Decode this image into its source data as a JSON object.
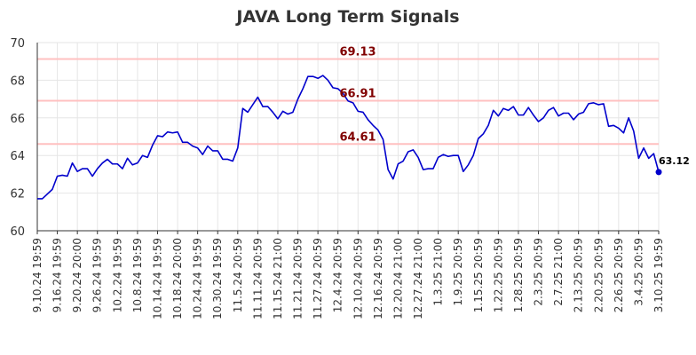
{
  "chart_data": {
    "type": "line",
    "title": "JAVA Long Term Signals",
    "xlabel": "",
    "ylabel": "",
    "ylim": [
      60,
      70
    ],
    "yticks": [
      60,
      62,
      64,
      66,
      68,
      70
    ],
    "grid": true,
    "line_color": "#0000cc",
    "ref_line_color": "#ffc0c0",
    "ref_label_color": "#800000",
    "ref_lines": [
      {
        "value": 69.13,
        "label": "69.13"
      },
      {
        "value": 66.91,
        "label": "66.91"
      },
      {
        "value": 64.61,
        "label": "64.61"
      }
    ],
    "last_value_label": "63.12",
    "x_tick_labels": [
      "9.10.24 19:59",
      "9.16.24 19:59",
      "9.20.24 20:00",
      "9.26.24 19:59",
      "10.2.24 19:59",
      "10.8.24 19:59",
      "10.14.24 19:59",
      "10.18.24 20:00",
      "10.24.24 19:59",
      "10.30.24 19:59",
      "11.5.24 20:59",
      "11.11.24 20:59",
      "11.15.24 21:00",
      "11.21.24 20:59",
      "11.27.24 20:59",
      "12.4.24 20:59",
      "12.10.24 20:59",
      "12.16.24 20:59",
      "12.20.24 21:00",
      "12.27.24 21:00",
      "1.3.25 21:00",
      "1.9.25 20:59",
      "1.15.25 20:59",
      "1.22.25 20:59",
      "1.28.25 20:59",
      "2.3.25 20:59",
      "2.7.25 21:00",
      "2.13.25 20:59",
      "2.20.25 20:59",
      "2.26.25 20:59",
      "3.4.25 20:59",
      "3.10.25 19:59"
    ],
    "series": [
      {
        "values": [
          61.7,
          61.7,
          61.95,
          62.2,
          62.9,
          62.95,
          62.9,
          63.6,
          63.15,
          63.3,
          63.3,
          62.9,
          63.3,
          63.6,
          63.8,
          63.55,
          63.55,
          63.3,
          63.85,
          63.5,
          63.6,
          64.0,
          63.9,
          64.55,
          65.05,
          65.0,
          65.25,
          65.2,
          65.25,
          64.7,
          64.7,
          64.5,
          64.4,
          64.05,
          64.5,
          64.25,
          64.25,
          63.8,
          63.8,
          63.7,
          64.4,
          66.5,
          66.3,
          66.7,
          67.1,
          66.6,
          66.6,
          66.3,
          65.95,
          66.35,
          66.2,
          66.3,
          67.0,
          67.55,
          68.2,
          68.2,
          68.1,
          68.25,
          68.0,
          67.6,
          67.55,
          67.3,
          66.9,
          66.8,
          66.35,
          66.3,
          65.9,
          65.6,
          65.35,
          64.85,
          63.25,
          62.75,
          63.55,
          63.7,
          64.2,
          64.3,
          63.9,
          63.25,
          63.3,
          63.3,
          63.9,
          64.05,
          63.95,
          64.0,
          64.0,
          63.15,
          63.5,
          64.0,
          64.9,
          65.15,
          65.6,
          66.4,
          66.1,
          66.5,
          66.4,
          66.6,
          66.15,
          66.15,
          66.55,
          66.15,
          65.8,
          66.0,
          66.4,
          66.55,
          66.1,
          66.25,
          66.25,
          65.9,
          66.2,
          66.3,
          66.75,
          66.8,
          66.7,
          66.75,
          65.55,
          65.6,
          65.45,
          65.2,
          66.0,
          65.3,
          63.85,
          64.4,
          63.85,
          64.1,
          63.12
        ]
      }
    ]
  }
}
